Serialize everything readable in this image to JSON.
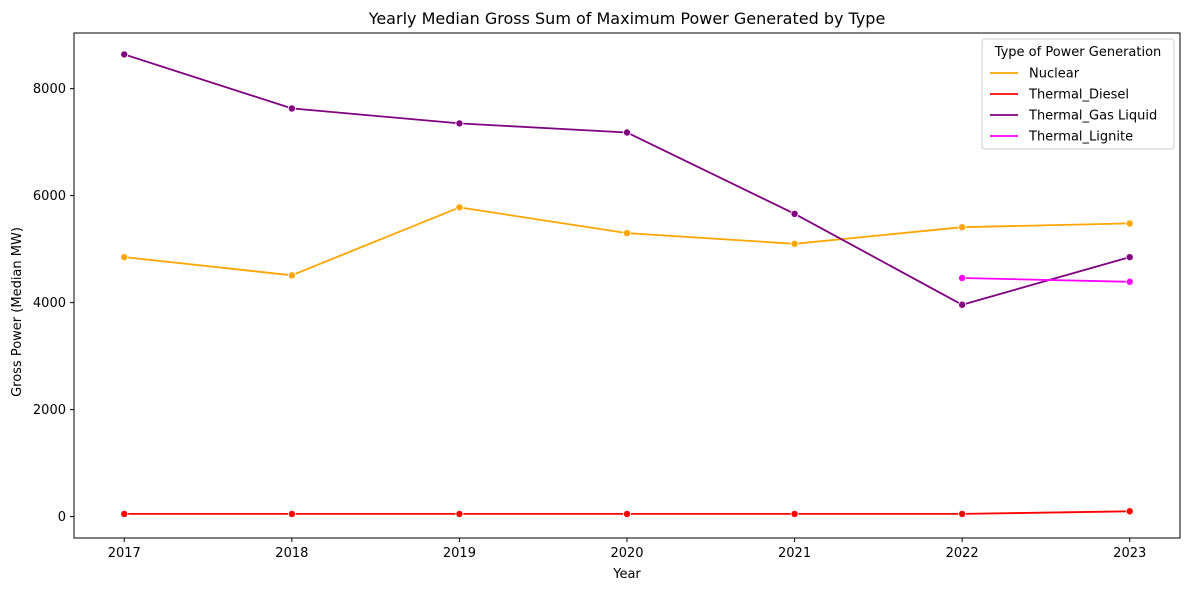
{
  "chart_data": {
    "type": "line",
    "title": "Yearly Median Gross Sum of Maximum Power Generated by Type",
    "xlabel": "Year",
    "ylabel": "Gross Power (Median MW)",
    "x": [
      2017,
      2018,
      2019,
      2020,
      2021,
      2022,
      2023
    ],
    "x_ticks": [
      "2017",
      "2018",
      "2019",
      "2020",
      "2021",
      "2022",
      "2023"
    ],
    "y_ticks": [
      "0",
      "2000",
      "4000",
      "6000",
      "8000"
    ],
    "y_tick_values": [
      0,
      2000,
      4000,
      6000,
      8000
    ],
    "xlim": [
      2016.7,
      2023.3
    ],
    "ylim": [
      -400,
      9040
    ],
    "grid": false,
    "legend": {
      "title": "Type of Power Generation",
      "placement": "upper-right"
    },
    "series": [
      {
        "name": "Nuclear",
        "color": "#ffa500",
        "x": [
          2017,
          2018,
          2019,
          2020,
          2021,
          2022,
          2023
        ],
        "values": [
          4850,
          4510,
          5780,
          5300,
          5100,
          5410,
          5480
        ]
      },
      {
        "name": "Thermal_Diesel",
        "color": "#ff0000",
        "x": [
          2017,
          2018,
          2019,
          2020,
          2021,
          2022,
          2023
        ],
        "values": [
          50,
          50,
          50,
          50,
          50,
          50,
          100
        ]
      },
      {
        "name": "Thermal_Gas Liquid",
        "color": "#800080",
        "x": [
          2017,
          2018,
          2019,
          2020,
          2021,
          2022,
          2023
        ],
        "values": [
          8640,
          7630,
          7350,
          7180,
          5660,
          3960,
          4850
        ]
      },
      {
        "name": "Thermal_Lignite",
        "color": "#ff00ff",
        "x": [
          2022,
          2023
        ],
        "values": [
          4460,
          4390
        ]
      }
    ]
  }
}
